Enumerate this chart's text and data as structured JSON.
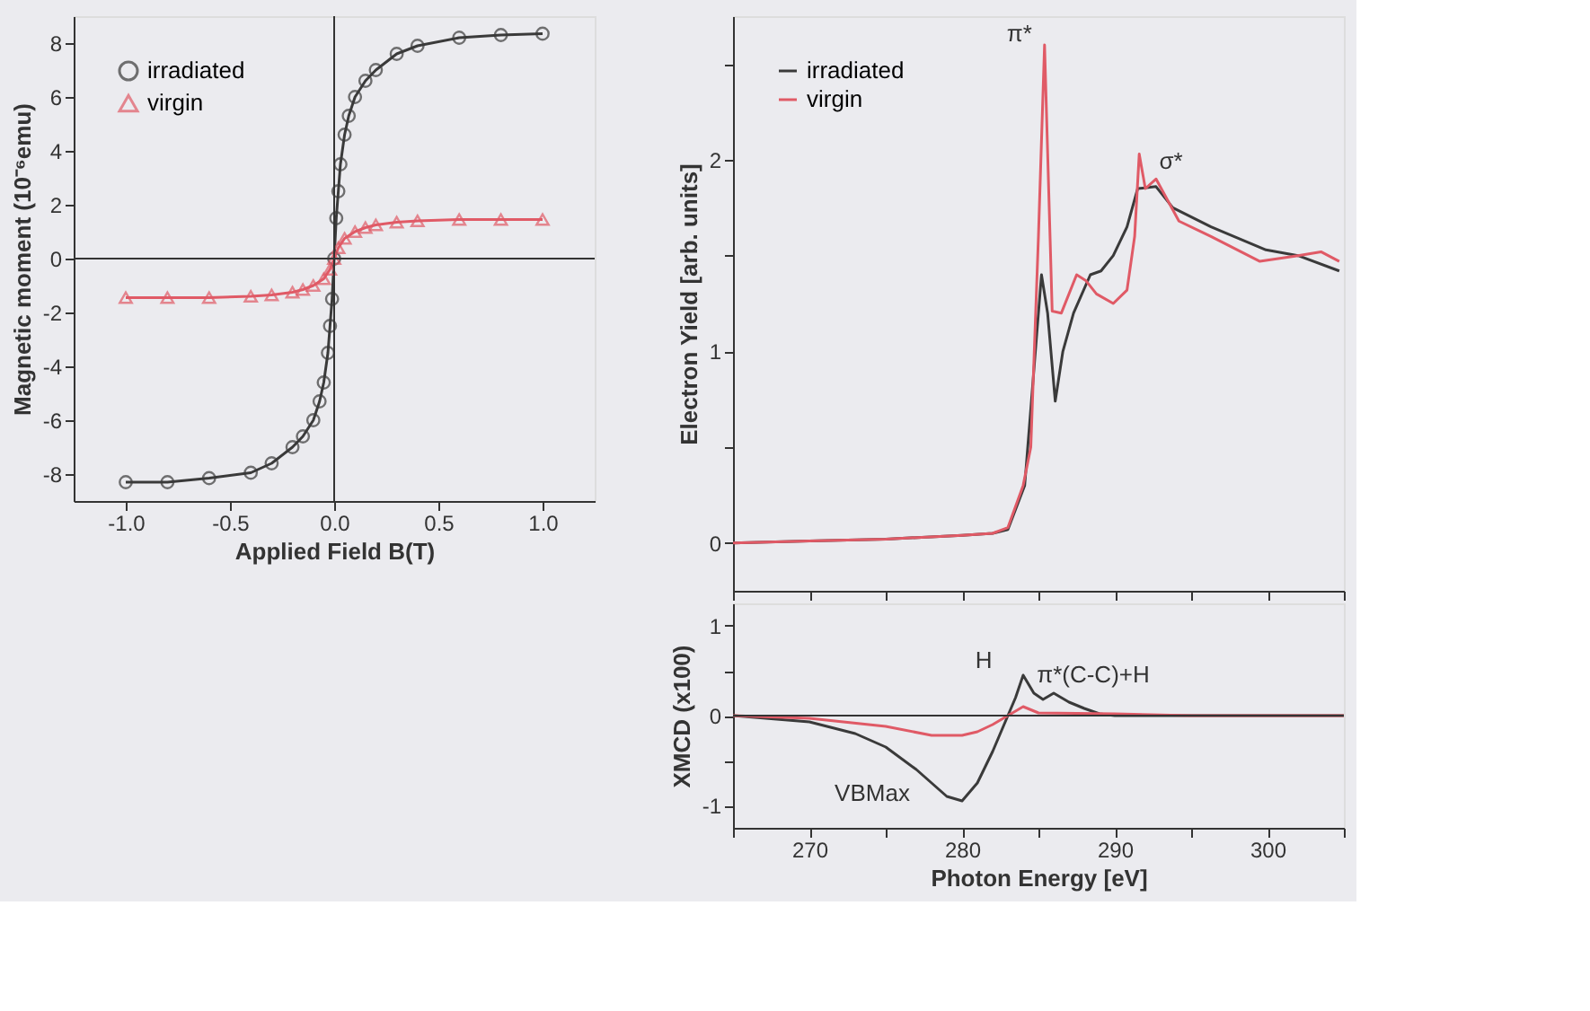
{
  "chart_data": [
    {
      "type": "line",
      "xlabel": "Applied Field B(T)",
      "ylabel": "Magnetic moment (10⁻⁶emu)",
      "xlim": [
        -1.25,
        1.25
      ],
      "ylim": [
        -9,
        9
      ],
      "xticks": [
        {
          "value": -1,
          "label": "-1.0"
        },
        {
          "value": -0.5,
          "label": "-0.5"
        },
        {
          "value": 0,
          "label": "0.0"
        },
        {
          "value": 0.5,
          "label": "0.5"
        },
        {
          "value": 1,
          "label": "1.0"
        }
      ],
      "yticks": [
        -8,
        -6,
        -4,
        -2,
        0,
        2,
        4,
        6,
        8
      ],
      "grid": false,
      "legend": "top left",
      "ref_lines": [
        {
          "axis": "x",
          "value": 0
        },
        {
          "axis": "y",
          "value": 0
        }
      ],
      "series": [
        {
          "name": "irradiated",
          "color": "#3a3a3a",
          "marker": "circle",
          "x": [
            -1,
            -0.8,
            -0.6,
            -0.4,
            -0.3,
            -0.2,
            -0.15,
            -0.1,
            -0.07,
            -0.05,
            -0.03,
            -0.02,
            -0.01,
            0,
            0.01,
            0.02,
            0.03,
            0.05,
            0.07,
            0.1,
            0.15,
            0.2,
            0.3,
            0.4,
            0.6,
            0.8,
            1.0
          ],
          "values": [
            -8.3,
            -8.3,
            -8.15,
            -7.95,
            -7.6,
            -7.0,
            -6.6,
            -6.0,
            -5.3,
            -4.6,
            -3.5,
            -2.5,
            -1.5,
            0,
            1.5,
            2.5,
            3.5,
            4.6,
            5.3,
            6.0,
            6.6,
            7.0,
            7.6,
            7.9,
            8.2,
            8.3,
            8.35
          ]
        },
        {
          "name": "virgin",
          "color": "#e05a66",
          "marker": "triangle",
          "x": [
            -1,
            -0.8,
            -0.6,
            -0.4,
            -0.3,
            -0.2,
            -0.15,
            -0.1,
            -0.05,
            -0.02,
            0,
            0.02,
            0.05,
            0.1,
            0.15,
            0.2,
            0.3,
            0.4,
            0.6,
            0.8,
            1.0
          ],
          "values": [
            -1.45,
            -1.45,
            -1.45,
            -1.4,
            -1.35,
            -1.25,
            -1.15,
            -1.0,
            -0.75,
            -0.4,
            0,
            0.4,
            0.75,
            1.0,
            1.15,
            1.25,
            1.35,
            1.4,
            1.45,
            1.45,
            1.45
          ]
        }
      ]
    },
    {
      "type": "line",
      "ylabel": "Electron Yield [arb. units]",
      "xlim": [
        265,
        305
      ],
      "ylim": [
        -0.25,
        2.75
      ],
      "xticks": [
        {
          "value": 265,
          "label": null
        },
        {
          "value": 270,
          "label": null
        },
        {
          "value": 275,
          "label": null
        },
        {
          "value": 280,
          "label": null
        },
        {
          "value": 285,
          "label": null
        },
        {
          "value": 290,
          "label": null
        },
        {
          "value": 295,
          "label": null
        },
        {
          "value": 300,
          "label": null
        },
        {
          "value": 305,
          "label": null
        }
      ],
      "yticks": [
        0,
        {
          "value": 0.5,
          "label": null
        },
        1,
        {
          "value": 1.5,
          "label": null
        },
        2,
        {
          "value": 2.5,
          "label": null
        }
      ],
      "tick_labels": "y",
      "grid": false,
      "legend": "top left",
      "annotations": [
        {
          "text": "π*",
          "x": 285.4,
          "y": 2.6
        },
        {
          "text": "σ*",
          "x": 292.5,
          "y": 1.86
        }
      ],
      "series": [
        {
          "name": "irradiated",
          "color": "#3a3a3a",
          "x": [
            265,
            270,
            275,
            280,
            282,
            283,
            284.1,
            284.7,
            285.2,
            285.6,
            286.1,
            286.6,
            287.3,
            288.4,
            289.1,
            289.9,
            290.8,
            291.5,
            292.7,
            293.8,
            296.3,
            299.9,
            302,
            304.7
          ],
          "values": [
            0,
            0.01,
            0.02,
            0.04,
            0.05,
            0.07,
            0.3,
            0.9,
            1.4,
            1.2,
            0.74,
            1.0,
            1.2,
            1.4,
            1.42,
            1.5,
            1.65,
            1.85,
            1.86,
            1.75,
            1.65,
            1.53,
            1.5,
            1.42
          ]
        },
        {
          "name": "virgin",
          "color": "#e05a66",
          "x": [
            265,
            270,
            275,
            280,
            282,
            283,
            284,
            284.5,
            285,
            285.4,
            285.9,
            286.5,
            287.5,
            288.1,
            288.8,
            289.9,
            290.8,
            291.3,
            291.6,
            292,
            292.7,
            294.2,
            296.3,
            299.5,
            302,
            303.5,
            304.7
          ],
          "values": [
            0,
            0.01,
            0.02,
            0.04,
            0.05,
            0.08,
            0.3,
            0.5,
            1.6,
            2.6,
            1.21,
            1.2,
            1.4,
            1.37,
            1.3,
            1.25,
            1.32,
            1.6,
            2.03,
            1.85,
            1.9,
            1.68,
            1.6,
            1.47,
            1.5,
            1.52,
            1.47
          ]
        }
      ]
    },
    {
      "type": "line",
      "xlabel": "Photon Energy [eV]",
      "ylabel": "XMCD (x100)",
      "xlim": [
        265,
        305
      ],
      "ylim": [
        -1.25,
        1.25
      ],
      "xticks": [
        {
          "value": 265,
          "label": null
        },
        270,
        {
          "value": 275,
          "label": null
        },
        280,
        {
          "value": 285,
          "label": null
        },
        290,
        {
          "value": 295,
          "label": null
        },
        300,
        {
          "value": 305,
          "label": null
        }
      ],
      "yticks": [
        -1,
        {
          "value": -0.5,
          "label": null
        },
        0,
        {
          "value": 0.5,
          "label": null
        },
        1
      ],
      "grid": false,
      "ref_lines": [
        {
          "axis": "y",
          "value": 0
        }
      ],
      "annotations": [
        {
          "text": "H",
          "x": 284,
          "y": 0.45
        },
        {
          "text": "π*(C-C)+H",
          "x": 286,
          "y": 0.25
        },
        {
          "text": "VBMax",
          "x": 280,
          "y": -0.95
        }
      ],
      "series": [
        {
          "color": "#3a3a3a",
          "x": [
            265,
            270,
            273,
            275,
            277,
            279,
            280,
            281,
            282,
            283,
            283.5,
            284,
            284.7,
            285.3,
            286,
            287,
            288,
            289,
            290,
            295,
            300,
            305
          ],
          "values": [
            0,
            -0.07,
            -0.2,
            -0.35,
            -0.6,
            -0.9,
            -0.95,
            -0.75,
            -0.4,
            0,
            0.2,
            0.45,
            0.25,
            0.18,
            0.25,
            0.15,
            0.08,
            0.02,
            0,
            0,
            0,
            0
          ]
        },
        {
          "color": "#e05a66",
          "x": [
            265,
            270,
            275,
            278,
            280,
            281,
            282,
            283,
            284,
            285,
            290,
            295,
            300,
            305
          ],
          "values": [
            0,
            -0.03,
            -0.12,
            -0.22,
            -0.22,
            -0.18,
            -0.1,
            0,
            0.1,
            0.03,
            0.02,
            0,
            0,
            0
          ]
        }
      ]
    }
  ]
}
